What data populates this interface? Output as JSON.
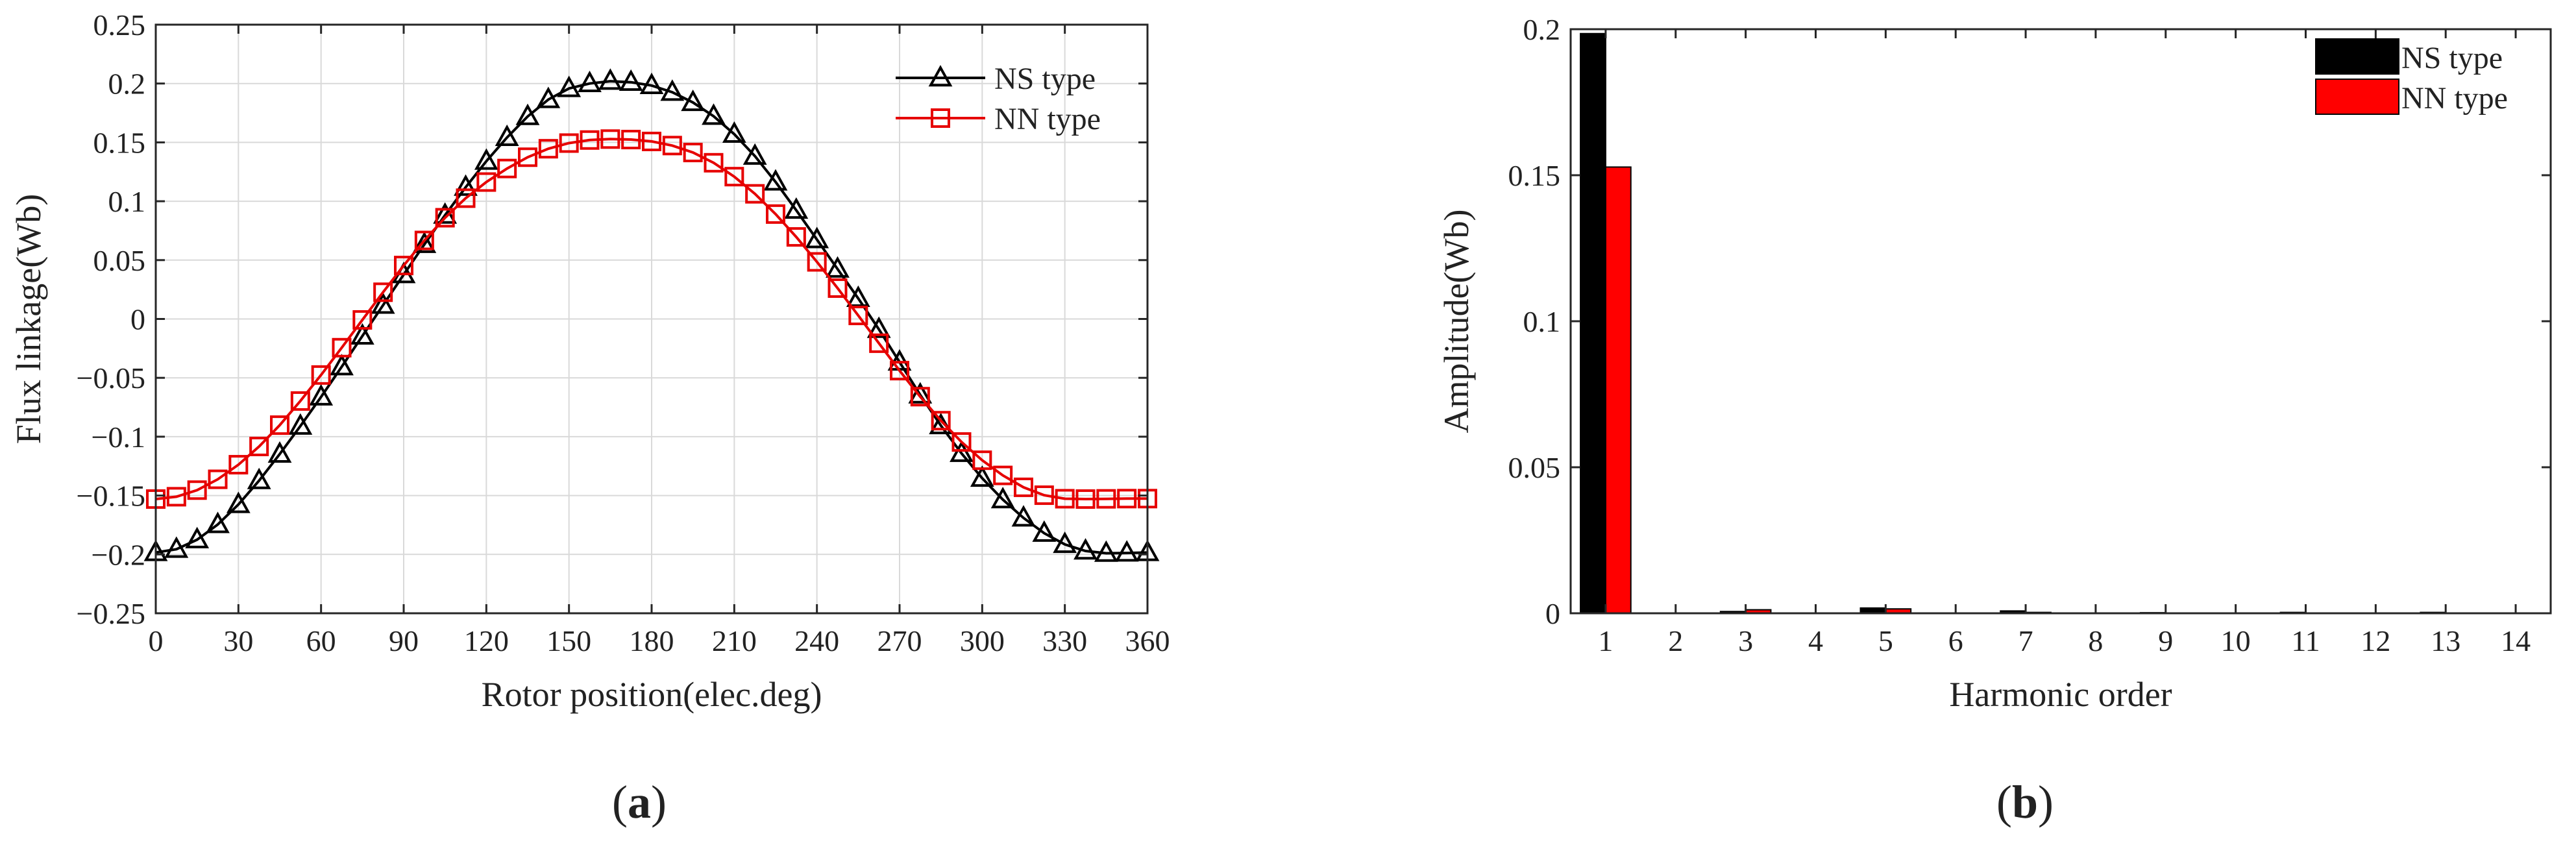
{
  "chart_data": [
    {
      "type": "line",
      "panel": "a",
      "panel_label": {
        "open": "(",
        "letter": "a",
        "close": ")"
      },
      "title": "",
      "xlabel": "Rotor position(elec.deg)",
      "ylabel": "Flux linkage(Wb)",
      "xlim": [
        0,
        360
      ],
      "ylim": [
        -0.25,
        0.25
      ],
      "xticks": [
        0,
        30,
        60,
        90,
        120,
        150,
        180,
        210,
        240,
        270,
        300,
        330,
        360
      ],
      "yticks": [
        -0.25,
        -0.2,
        -0.15,
        -0.1,
        -0.05,
        0,
        0.05,
        0.1,
        0.15,
        0.2,
        0.25
      ],
      "xtick_labels": [
        "0",
        "30",
        "60",
        "90",
        "120",
        "150",
        "180",
        "210",
        "240",
        "270",
        "300",
        "330",
        "360"
      ],
      "ytick_labels": [
        "−0.25",
        "−0.2",
        "−0.15",
        "−0.1",
        "−0.05",
        "0",
        "0.05",
        "0.1",
        "0.15",
        "0.2",
        "0.25"
      ],
      "grid": true,
      "legend_position": "top-right",
      "x": [
        0,
        7.5,
        15,
        22.5,
        30,
        37.5,
        45,
        52.5,
        60,
        67.5,
        75,
        82.5,
        90,
        97.5,
        105,
        112.5,
        120,
        127.5,
        135,
        142.5,
        150,
        157.5,
        165,
        172.5,
        180,
        187.5,
        195,
        202.5,
        210,
        217.5,
        225,
        232.5,
        240,
        247.5,
        255,
        262.5,
        270,
        277.5,
        285,
        292.5,
        300,
        307.5,
        315,
        322.5,
        330,
        337.5,
        345,
        352.5,
        360
      ],
      "series": [
        {
          "name": "NS type",
          "color": "#000000",
          "marker": "triangle",
          "values": [
            -0.1984,
            -0.1956,
            -0.1875,
            -0.1746,
            -0.1576,
            -0.1373,
            -0.1148,
            -0.091,
            -0.0662,
            -0.0406,
            -0.0145,
            0.0117,
            0.0377,
            0.0633,
            0.0882,
            0.1119,
            0.134,
            0.1542,
            0.172,
            0.1864,
            0.1958,
            0.2,
            0.202,
            0.2011,
            0.1983,
            0.1926,
            0.1839,
            0.1722,
            0.157,
            0.1383,
            0.1164,
            0.0924,
            0.0674,
            0.0424,
            0.0175,
            -0.0088,
            -0.0366,
            -0.0645,
            -0.0906,
            -0.1142,
            -0.1353,
            -0.1535,
            -0.169,
            -0.182,
            -0.1915,
            -0.1971,
            -0.199,
            -0.1988,
            -0.1984
          ]
        },
        {
          "name": "NN type",
          "color": "#e60000",
          "marker": "square",
          "values": [
            -0.153,
            -0.151,
            -0.1454,
            -0.1362,
            -0.1238,
            -0.1083,
            -0.0902,
            -0.0697,
            -0.0476,
            -0.0244,
            -0.0008,
            0.0227,
            0.0454,
            0.0667,
            0.086,
            0.1026,
            0.1163,
            0.1278,
            0.1374,
            0.1446,
            0.1494,
            0.152,
            0.1528,
            0.1524,
            0.1508,
            0.1473,
            0.1414,
            0.1327,
            0.1209,
            0.1063,
            0.0891,
            0.0697,
            0.0485,
            0.0262,
            0.003,
            -0.0206,
            -0.0439,
            -0.066,
            -0.0864,
            -0.1045,
            -0.12,
            -0.1329,
            -0.143,
            -0.1497,
            -0.1527,
            -0.153,
            -0.1528,
            -0.1526,
            -0.1526
          ]
        }
      ]
    },
    {
      "type": "bar",
      "panel": "b",
      "panel_label": {
        "open": "(",
        "letter": "b",
        "close": ")"
      },
      "title": "",
      "xlabel": "Harmonic order",
      "ylabel": "Amplitude(Wb)",
      "xlim": [
        0.5,
        14.5
      ],
      "ylim": [
        0,
        0.2
      ],
      "yticks": [
        0,
        0.05,
        0.1,
        0.15,
        0.2
      ],
      "ytick_labels": [
        "0",
        "0.05",
        "0.1",
        "0.15",
        "0.2"
      ],
      "categories": [
        "1",
        "2",
        "3",
        "4",
        "5",
        "6",
        "7",
        "8",
        "9",
        "10",
        "11",
        "12",
        "13",
        "14"
      ],
      "grid": false,
      "legend_position": "top-right",
      "series": [
        {
          "name": "NS type",
          "color": "#000000",
          "values": [
            0.1985,
            0.0,
            0.0006,
            0.0,
            0.0018,
            0.0,
            0.0008,
            0.0,
            0.0002,
            0.0,
            0.0003,
            0.0,
            0.0003,
            0.0
          ]
        },
        {
          "name": "NN type",
          "color": "#ff0000",
          "values": [
            0.1528,
            0.0,
            0.0012,
            0.0,
            0.0015,
            0.0,
            0.0003,
            0.0,
            0.0001,
            0.0,
            0.0001,
            0.0,
            0.0001,
            0.0
          ]
        }
      ]
    }
  ]
}
